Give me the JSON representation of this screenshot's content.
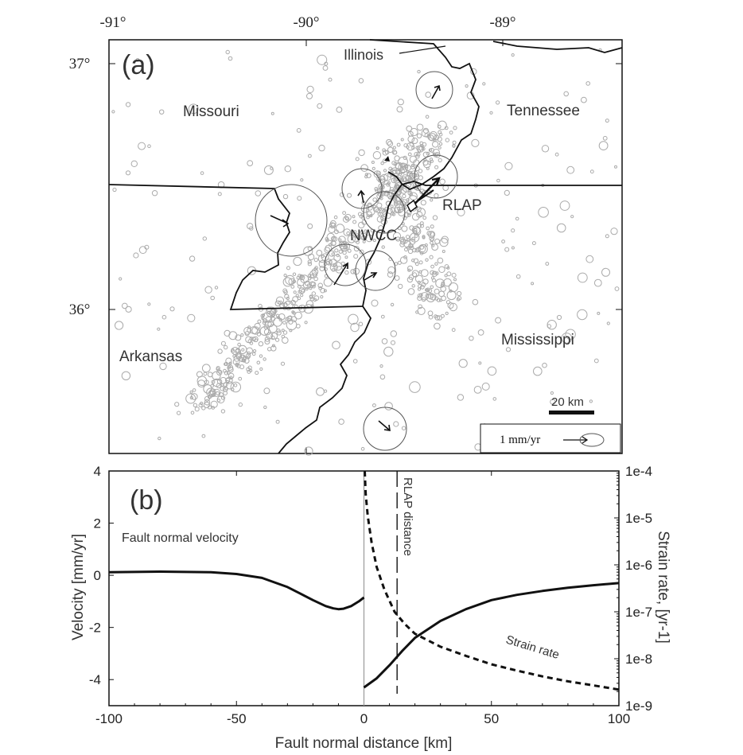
{
  "panel_a": {
    "label": "(a)",
    "lon_ticks": [
      "-91°",
      "-90°",
      "-89°"
    ],
    "lat_ticks": [
      "37°",
      "36°"
    ],
    "states": [
      "Illinois",
      "Missouri",
      "Tennessee",
      "Arkansas",
      "Mississippi"
    ],
    "sites": [
      "RLAP",
      "NWCC"
    ],
    "scale_bar": "20 km",
    "velocity_legend": "1 mm/yr"
  },
  "chart_data": {
    "type": "line",
    "label": "(b)",
    "xlabel": "Fault normal distance [km]",
    "ylabel": "Velocity [mm/yr]",
    "y2label": "Strain rate, [yr-1]",
    "xlim": [
      -100,
      100
    ],
    "ylim": [
      -5,
      4
    ],
    "y2lim": [
      1e-09,
      0.0001
    ],
    "y2scale": "log",
    "x_ticks": [
      "-100",
      "-50",
      "0",
      "50",
      "100"
    ],
    "y_ticks": [
      "4",
      "2",
      "0",
      "-2",
      "-4"
    ],
    "y2_ticks": [
      "1e-4",
      "1e-5",
      "1e-6",
      "1e-7",
      "1e-8",
      "1e-9"
    ],
    "annotations": [
      "Fault normal velocity",
      "Strain rate",
      "RLAP distance"
    ],
    "rlap_distance_x": 13,
    "series": [
      {
        "name": "Fault normal velocity",
        "axis": "left",
        "style": "solid",
        "x": [
          -100,
          -80,
          -60,
          -50,
          -40,
          -30,
          -25,
          -20,
          -15,
          -12,
          -10,
          -8,
          -5,
          -2,
          0
        ],
        "y": [
          0.12,
          0.14,
          0.12,
          0.05,
          -0.1,
          -0.45,
          -0.7,
          -0.95,
          -1.18,
          -1.27,
          -1.3,
          -1.28,
          -1.18,
          -1.0,
          -0.85
        ]
      },
      {
        "name": "Fault normal velocity",
        "axis": "left",
        "style": "solid",
        "x": [
          0,
          5,
          10,
          15,
          20,
          30,
          40,
          50,
          60,
          70,
          80,
          90,
          100
        ],
        "y": [
          -4.3,
          -3.95,
          -3.45,
          -2.9,
          -2.4,
          -1.75,
          -1.3,
          -0.95,
          -0.75,
          -0.6,
          -0.48,
          -0.38,
          -0.3
        ]
      },
      {
        "name": "Strain rate",
        "axis": "right",
        "style": "dashed",
        "x": [
          0.3,
          0.7,
          1.5,
          3,
          5,
          8,
          12,
          16,
          20,
          30,
          40,
          50,
          60,
          70,
          80,
          90,
          100
        ],
        "y": [
          0.0001,
          3.2e-05,
          1.1e-05,
          3e-06,
          9e-07,
          3e-07,
          1e-07,
          5.5e-08,
          3.4e-08,
          1.8e-08,
          1.15e-08,
          7.6e-09,
          5.6e-09,
          4.2e-09,
          3.3e-09,
          2.7e-09,
          2.2e-09
        ]
      }
    ]
  }
}
